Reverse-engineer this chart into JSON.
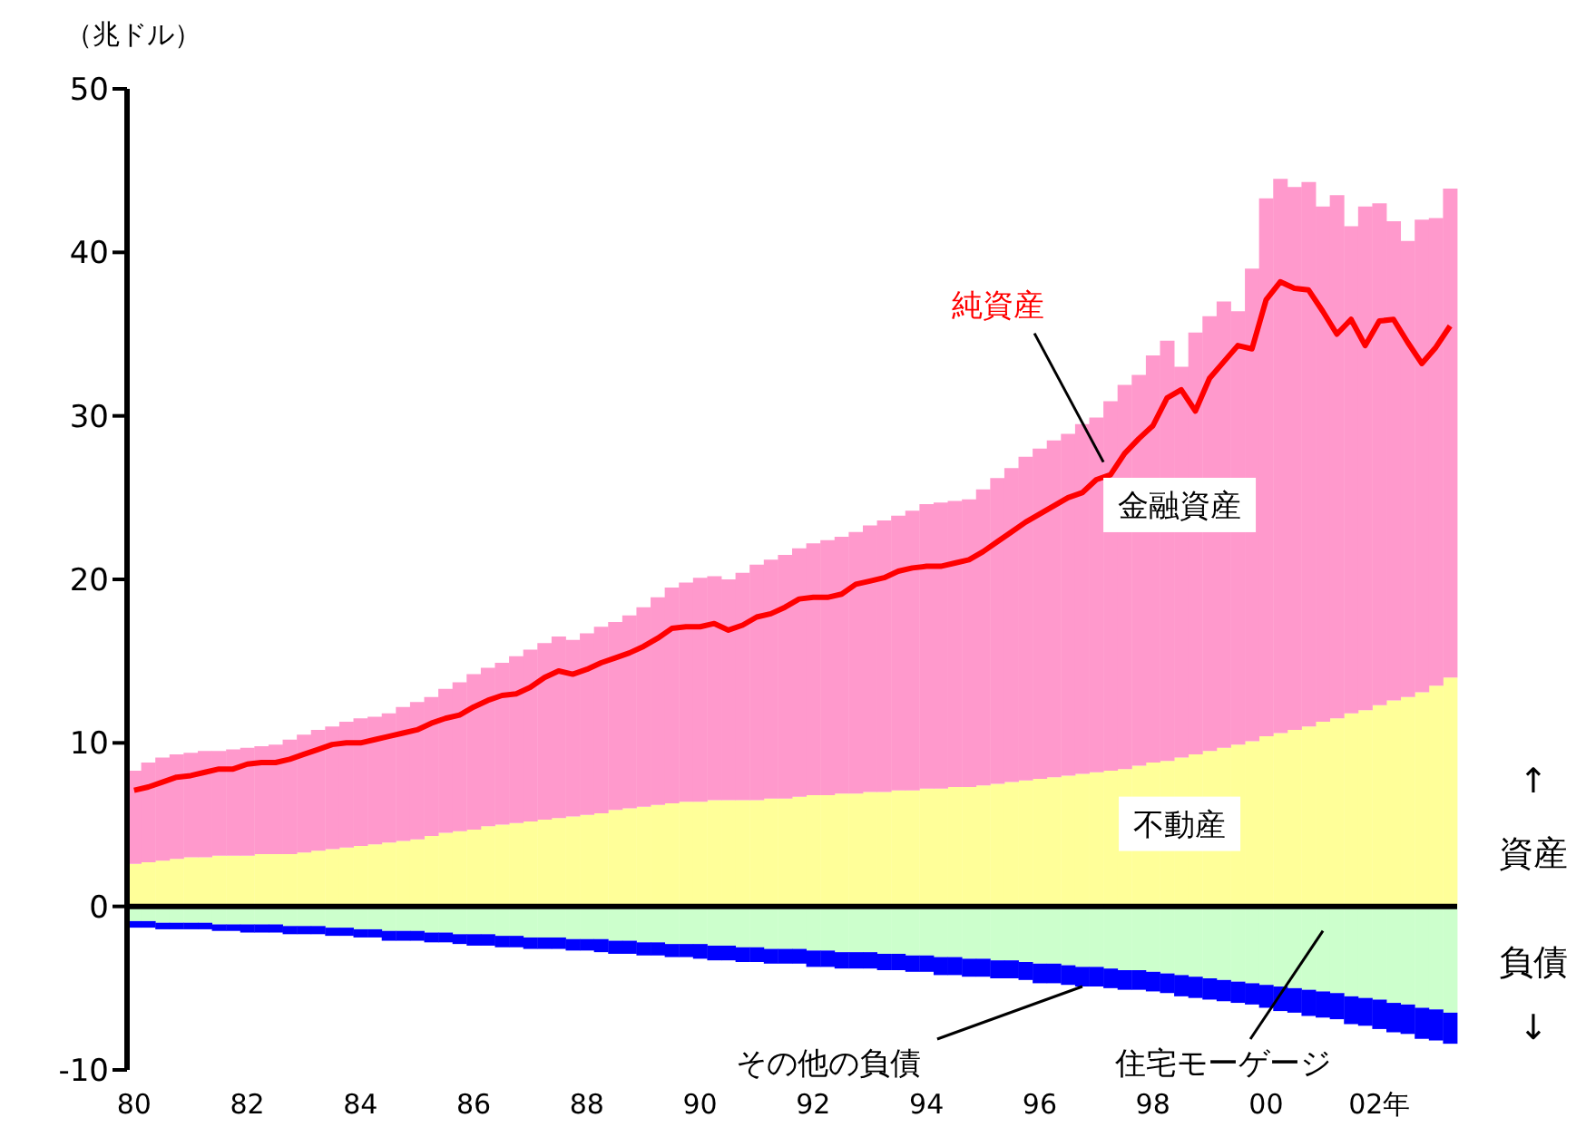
{
  "chart_data": {
    "type": "bar",
    "stacked": true,
    "ylabel": "（兆ドル）",
    "ylim": [
      -10,
      50
    ],
    "yticks": [
      -10,
      0,
      10,
      20,
      30,
      40,
      50
    ],
    "categories": [
      "80",
      null,
      null,
      null,
      null,
      null,
      null,
      null,
      "82",
      null,
      null,
      null,
      null,
      null,
      null,
      null,
      "84",
      null,
      null,
      null,
      null,
      null,
      null,
      null,
      "86",
      null,
      null,
      null,
      null,
      null,
      null,
      null,
      "88",
      null,
      null,
      null,
      null,
      null,
      null,
      null,
      "90",
      null,
      null,
      null,
      null,
      null,
      null,
      null,
      "92",
      null,
      null,
      null,
      null,
      null,
      null,
      null,
      "94",
      null,
      null,
      null,
      null,
      null,
      null,
      null,
      "96",
      null,
      null,
      null,
      null,
      null,
      null,
      null,
      "98",
      null,
      null,
      null,
      null,
      null,
      null,
      null,
      "00",
      null,
      null,
      null,
      null,
      null,
      null,
      null,
      "02年",
      null,
      null,
      null,
      null,
      null
    ],
    "series": [
      {
        "name": "不動産",
        "color": "#ffff99",
        "values": [
          2.6,
          2.7,
          2.8,
          2.9,
          3.0,
          3.0,
          3.1,
          3.1,
          3.1,
          3.2,
          3.2,
          3.2,
          3.3,
          3.4,
          3.5,
          3.6,
          3.7,
          3.8,
          3.9,
          4.0,
          4.1,
          4.3,
          4.5,
          4.6,
          4.7,
          4.9,
          5.0,
          5.1,
          5.2,
          5.3,
          5.4,
          5.5,
          5.6,
          5.7,
          5.9,
          6.0,
          6.1,
          6.2,
          6.3,
          6.4,
          6.4,
          6.5,
          6.5,
          6.5,
          6.5,
          6.6,
          6.6,
          6.7,
          6.8,
          6.8,
          6.9,
          6.9,
          7.0,
          7.0,
          7.1,
          7.1,
          7.2,
          7.2,
          7.3,
          7.3,
          7.4,
          7.5,
          7.6,
          7.7,
          7.8,
          7.9,
          8.0,
          8.1,
          8.2,
          8.3,
          8.4,
          8.6,
          8.8,
          8.9,
          9.1,
          9.3,
          9.5,
          9.7,
          9.9,
          10.1,
          10.4,
          10.6,
          10.8,
          11.0,
          11.3,
          11.5,
          11.8,
          12.0,
          12.3,
          12.6,
          12.8,
          13.1,
          13.5,
          14.0
        ]
      },
      {
        "name": "金融資産",
        "color": "#ff99cc",
        "values": [
          5.7,
          6.1,
          6.3,
          6.4,
          6.4,
          6.5,
          6.4,
          6.5,
          6.6,
          6.6,
          6.7,
          7.0,
          7.2,
          7.4,
          7.5,
          7.7,
          7.8,
          7.8,
          7.9,
          8.2,
          8.4,
          8.5,
          8.8,
          9.1,
          9.5,
          9.7,
          9.9,
          10.2,
          10.5,
          10.8,
          11.1,
          10.8,
          11.1,
          11.4,
          11.5,
          11.8,
          12.2,
          12.7,
          13.2,
          13.4,
          13.7,
          13.7,
          13.5,
          13.9,
          14.4,
          14.6,
          14.9,
          15.2,
          15.4,
          15.6,
          15.7,
          16.0,
          16.3,
          16.6,
          16.8,
          17.1,
          17.4,
          17.5,
          17.5,
          17.6,
          18.1,
          18.7,
          19.2,
          19.8,
          20.2,
          20.6,
          20.9,
          21.4,
          21.7,
          22.6,
          23.5,
          23.9,
          24.9,
          25.7,
          23.9,
          25.8,
          26.6,
          27.3,
          26.5,
          28.9,
          32.9,
          33.9,
          33.2,
          33.3,
          31.5,
          32.0,
          29.8,
          30.8,
          30.7,
          29.3,
          27.9,
          28.9,
          28.6,
          29.9
        ]
      },
      {
        "name": "住宅モーゲージ",
        "color": "#ccffcc",
        "values": [
          -0.9,
          -0.9,
          -1.0,
          -1.0,
          -1.0,
          -1.0,
          -1.1,
          -1.1,
          -1.1,
          -1.1,
          -1.1,
          -1.2,
          -1.2,
          -1.2,
          -1.3,
          -1.3,
          -1.4,
          -1.4,
          -1.5,
          -1.5,
          -1.5,
          -1.6,
          -1.6,
          -1.7,
          -1.7,
          -1.7,
          -1.8,
          -1.8,
          -1.9,
          -1.9,
          -1.9,
          -2.0,
          -2.0,
          -2.0,
          -2.1,
          -2.1,
          -2.2,
          -2.2,
          -2.3,
          -2.3,
          -2.3,
          -2.4,
          -2.4,
          -2.5,
          -2.5,
          -2.6,
          -2.6,
          -2.6,
          -2.7,
          -2.7,
          -2.8,
          -2.8,
          -2.8,
          -2.9,
          -2.9,
          -3.0,
          -3.0,
          -3.1,
          -3.1,
          -3.2,
          -3.2,
          -3.3,
          -3.3,
          -3.4,
          -3.5,
          -3.5,
          -3.6,
          -3.7,
          -3.7,
          -3.8,
          -3.9,
          -3.9,
          -4.0,
          -4.1,
          -4.2,
          -4.3,
          -4.4,
          -4.5,
          -4.6,
          -4.7,
          -4.8,
          -4.9,
          -5.0,
          -5.1,
          -5.2,
          -5.3,
          -5.5,
          -5.6,
          -5.7,
          -5.9,
          -6.0,
          -6.2,
          -6.3,
          -6.5
        ]
      },
      {
        "name": "その他の負債",
        "color": "#0000ff",
        "values": [
          -0.4,
          -0.4,
          -0.4,
          -0.4,
          -0.4,
          -0.4,
          -0.4,
          -0.4,
          -0.5,
          -0.5,
          -0.5,
          -0.5,
          -0.5,
          -0.5,
          -0.5,
          -0.5,
          -0.5,
          -0.5,
          -0.6,
          -0.6,
          -0.6,
          -0.6,
          -0.6,
          -0.6,
          -0.7,
          -0.7,
          -0.7,
          -0.7,
          -0.7,
          -0.7,
          -0.7,
          -0.7,
          -0.7,
          -0.8,
          -0.8,
          -0.8,
          -0.8,
          -0.8,
          -0.8,
          -0.8,
          -0.9,
          -0.9,
          -0.9,
          -0.9,
          -0.9,
          -0.9,
          -0.9,
          -0.9,
          -1.0,
          -1.0,
          -1.0,
          -1.0,
          -1.0,
          -1.0,
          -1.0,
          -1.0,
          -1.0,
          -1.1,
          -1.1,
          -1.1,
          -1.1,
          -1.1,
          -1.1,
          -1.1,
          -1.2,
          -1.2,
          -1.2,
          -1.2,
          -1.2,
          -1.2,
          -1.2,
          -1.2,
          -1.2,
          -1.2,
          -1.3,
          -1.3,
          -1.3,
          -1.3,
          -1.3,
          -1.3,
          -1.4,
          -1.5,
          -1.5,
          -1.6,
          -1.6,
          -1.6,
          -1.7,
          -1.7,
          -1.8,
          -1.8,
          -1.8,
          -1.9,
          -1.9,
          -1.9
        ]
      },
      {
        "name": "純資産",
        "type": "line",
        "color": "#ff0000",
        "values": [
          7.1,
          7.3,
          7.6,
          7.9,
          8.0,
          8.2,
          8.4,
          8.4,
          8.7,
          8.8,
          8.8,
          9.0,
          9.3,
          9.6,
          9.9,
          10.0,
          10.0,
          10.2,
          10.4,
          10.6,
          10.8,
          11.2,
          11.5,
          11.7,
          12.2,
          12.6,
          12.9,
          13.0,
          13.4,
          14.0,
          14.4,
          14.2,
          14.5,
          14.9,
          15.2,
          15.5,
          15.9,
          16.4,
          17.0,
          17.1,
          17.1,
          17.3,
          16.9,
          17.2,
          17.7,
          17.9,
          18.3,
          18.8,
          18.9,
          18.9,
          19.1,
          19.7,
          19.9,
          20.1,
          20.5,
          20.7,
          20.8,
          20.8,
          21.0,
          21.2,
          21.7,
          22.3,
          22.9,
          23.5,
          24.0,
          24.5,
          25.0,
          25.3,
          26.1,
          26.4,
          27.7,
          28.6,
          29.4,
          31.1,
          31.6,
          30.3,
          32.3,
          33.3,
          34.3,
          34.1,
          37.1,
          38.2,
          37.8,
          37.7,
          36.4,
          35.0,
          35.9,
          34.3,
          35.8,
          35.9,
          34.5,
          33.2,
          34.2,
          35.5
        ]
      }
    ],
    "annotations": [
      "↑",
      "資産",
      "負債",
      "↓"
    ]
  }
}
